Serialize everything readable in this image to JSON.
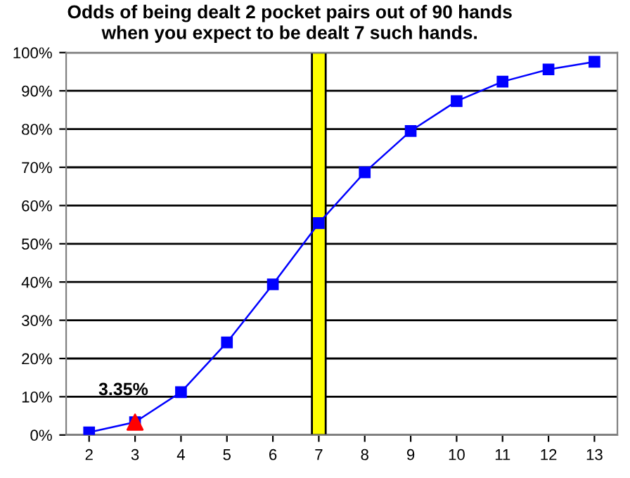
{
  "chart_data": {
    "type": "line",
    "title": "Odds of being dealt 2 pocket pairs out of 90 hands\nwhen you expect to be dealt 7 such hands.",
    "categories": [
      "2",
      "3",
      "4",
      "5",
      "6",
      "7",
      "8",
      "9",
      "10",
      "11",
      "12",
      "13"
    ],
    "series": [
      {
        "type": "bar",
        "color": "#ffff00",
        "values": [
          null,
          null,
          null,
          null,
          null,
          100,
          null,
          null,
          null,
          null,
          null,
          null
        ]
      },
      {
        "color": "#0000ff",
        "marker": "square",
        "values": [
          0.7,
          3.35,
          11.2,
          24.2,
          39.4,
          55.4,
          68.7,
          79.5,
          87.3,
          92.4,
          95.6,
          97.6
        ]
      },
      {
        "type": "scatter",
        "color": "#ff0000",
        "marker": "triangle",
        "x": [
          "3"
        ],
        "values": [
          3.35
        ],
        "value_labels": [
          "3.35%"
        ]
      }
    ],
    "ylim": [
      0,
      100
    ],
    "yticks": [
      {
        "value": 0,
        "label": "0%"
      },
      {
        "value": 10,
        "label": "10%"
      },
      {
        "value": 20,
        "label": "20%"
      },
      {
        "value": 30,
        "label": "30%"
      },
      {
        "value": 40,
        "label": "40%"
      },
      {
        "value": 50,
        "label": "50%"
      },
      {
        "value": 60,
        "label": "60%"
      },
      {
        "value": 70,
        "label": "70%"
      },
      {
        "value": 80,
        "label": "80%"
      },
      {
        "value": 90,
        "label": "90%"
      },
      {
        "value": 100,
        "label": "100%"
      }
    ],
    "grid": "y"
  }
}
